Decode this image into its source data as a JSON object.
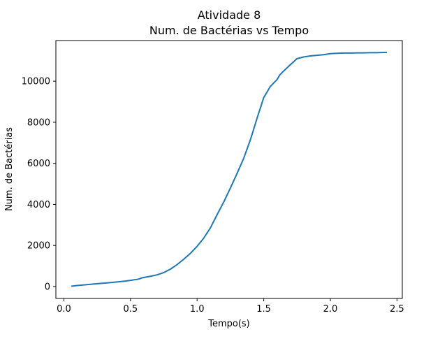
{
  "chart_data": {
    "type": "line",
    "title": "Atividade 8",
    "subtitle": "Num. de Bactérias vs Tempo",
    "xlabel": "Tempo(s)",
    "ylabel": "Num. de Bactérias",
    "xlim": [
      -0.06,
      2.54
    ],
    "ylim": [
      -580,
      11980
    ],
    "xticks": [
      0.0,
      0.5,
      1.0,
      1.5,
      2.0,
      2.5
    ],
    "xtick_labels": [
      "0.0",
      "0.5",
      "1.0",
      "1.5",
      "2.0",
      "2.5"
    ],
    "yticks": [
      0,
      2000,
      4000,
      6000,
      8000,
      10000
    ],
    "ytick_labels": [
      "0",
      "2000",
      "4000",
      "6000",
      "8000",
      "10000"
    ],
    "grid": false,
    "series": [
      {
        "color": "#1f77b4",
        "x": [
          0.06,
          0.1,
          0.15,
          0.2,
          0.25,
          0.3,
          0.35,
          0.4,
          0.45,
          0.5,
          0.55,
          0.57,
          0.58,
          0.6,
          0.65,
          0.7,
          0.75,
          0.8,
          0.85,
          0.9,
          0.95,
          1.0,
          1.05,
          1.1,
          1.15,
          1.2,
          1.25,
          1.3,
          1.35,
          1.4,
          1.45,
          1.5,
          1.55,
          1.6,
          1.62,
          1.65,
          1.7,
          1.75,
          1.8,
          1.85,
          1.9,
          1.95,
          2.0,
          2.05,
          2.1,
          2.15,
          2.2,
          2.25,
          2.3,
          2.35,
          2.4,
          2.42
        ],
        "y": [
          20,
          50,
          80,
          110,
          140,
          165,
          195,
          225,
          260,
          300,
          350,
          380,
          410,
          440,
          500,
          570,
          680,
          850,
          1070,
          1330,
          1620,
          1960,
          2360,
          2860,
          3500,
          4120,
          4800,
          5510,
          6250,
          7150,
          8200,
          9200,
          9750,
          10080,
          10300,
          10500,
          10800,
          11100,
          11180,
          11230,
          11260,
          11290,
          11340,
          11360,
          11370,
          11370,
          11380,
          11380,
          11390,
          11390,
          11400,
          11400
        ]
      }
    ]
  }
}
